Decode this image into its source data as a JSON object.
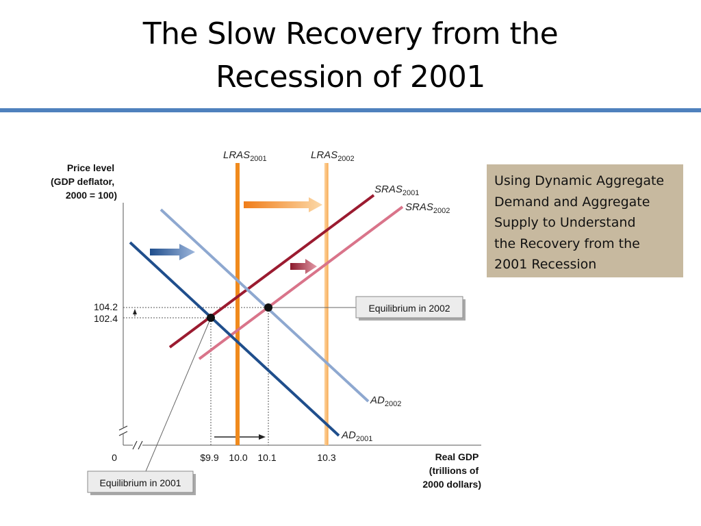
{
  "slide": {
    "title_line1": "The Slow Recovery from the",
    "title_line2": "Recession of 2001",
    "accent_color": "#4f81bd"
  },
  "note": {
    "lines": [
      "Using Dynamic Aggregate",
      "Demand and Aggregate",
      "Supply to Understand",
      "the Recovery from the",
      "2001 Recession"
    ],
    "background": "#c7b99f"
  },
  "chart_data": {
    "type": "line",
    "title": "",
    "ylabel_lines": [
      "Price level",
      "(GDP deflator,",
      "2000 = 100)"
    ],
    "xlabel_lines": [
      "Real GDP",
      "(trillions of",
      "2000 dollars)"
    ],
    "origin_label": "0",
    "x_ticks": [
      {
        "value": 9.9,
        "label": "$9.9"
      },
      {
        "value": 10.0,
        "label": "10.0"
      },
      {
        "value": 10.1,
        "label": "10.1"
      },
      {
        "value": 10.3,
        "label": "10.3"
      }
    ],
    "y_ticks": [
      {
        "value": 104.2,
        "label": "104.2"
      },
      {
        "value": 102.4,
        "label": "102.4"
      }
    ],
    "series": [
      {
        "id": "lras2001",
        "name": "LRAS",
        "sub": "2001",
        "kind": "vertical",
        "x": 10.0,
        "color": "#f08a1d"
      },
      {
        "id": "lras2002",
        "name": "LRAS",
        "sub": "2002",
        "kind": "vertical",
        "x": 10.3,
        "color": "#fcc98a"
      },
      {
        "id": "sras2001",
        "name": "SRAS",
        "sub": "2001",
        "kind": "line",
        "color": "#9b1b30"
      },
      {
        "id": "sras2002",
        "name": "SRAS",
        "sub": "2002",
        "kind": "line",
        "color": "#d9748a"
      },
      {
        "id": "ad2001",
        "name": "AD",
        "sub": "2001",
        "kind": "line",
        "color": "#1f4e8c"
      },
      {
        "id": "ad2002",
        "name": "AD",
        "sub": "2002",
        "kind": "line",
        "color": "#8ea8d0"
      }
    ],
    "equilibria": [
      {
        "label": "Equilibrium in 2001",
        "x": 9.9,
        "y": 102.4
      },
      {
        "label": "Equilibrium in 2002",
        "x": 10.1,
        "y": 104.2
      }
    ],
    "shift_arrows": [
      {
        "id": "lras-shift",
        "color": "#f08a1d"
      },
      {
        "id": "ad-shift",
        "color": "#2f5d9a"
      },
      {
        "id": "sras-shift",
        "color": "#a8323f"
      }
    ]
  }
}
